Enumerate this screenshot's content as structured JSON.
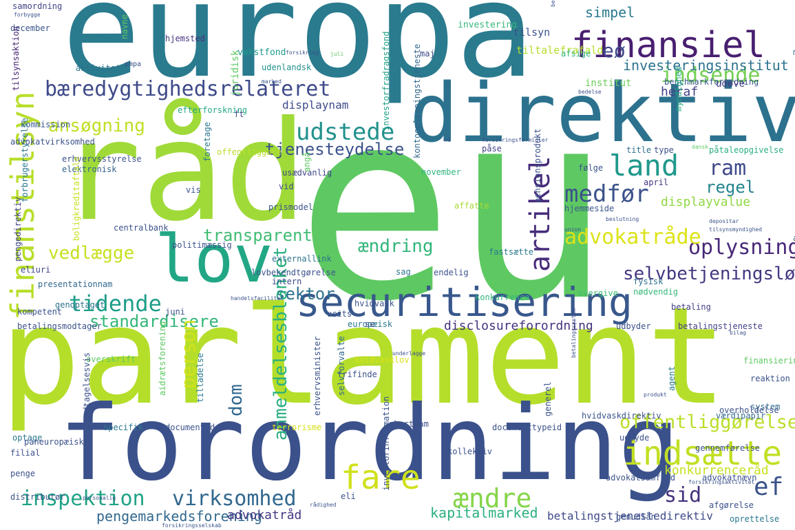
{
  "words": [
    {
      "text": "europa",
      "color": "#2a7b8e",
      "rot": 0
    },
    {
      "text": "eu",
      "color": "#5ec962",
      "rot": 0
    },
    {
      "text": "parlament",
      "color": "#b5de2b",
      "rot": 0
    },
    {
      "text": "forordning",
      "color": "#3b518b",
      "rot": 0
    },
    {
      "text": "direktiv",
      "color": "#2c728e",
      "rot": 0
    },
    {
      "text": "råd",
      "color": "#a0da39",
      "rot": 0
    },
    {
      "text": "lov",
      "color": "#22a785",
      "rot": 0
    },
    {
      "text": "finansiel",
      "color": "#481f70",
      "rot": 0
    },
    {
      "text": "securitisering",
      "color": "#38588c",
      "rot": 0
    },
    {
      "text": "bæredygtighedsrelateret",
      "color": "#3e4a89",
      "rot": 0
    },
    {
      "text": "finanstilsyn",
      "color": "#b8de29",
      "rot": 90
    },
    {
      "text": "fare",
      "color": "#d0e11c",
      "rot": 0
    },
    {
      "text": "indsætte",
      "color": "#c2df23",
      "rot": 0
    },
    {
      "text": "land",
      "color": "#1f988b",
      "rot": 0
    },
    {
      "text": "medfør",
      "color": "#3b528b",
      "rot": 0
    },
    {
      "text": "artikel",
      "color": "#472d7b",
      "rot": 90
    },
    {
      "text": "udstede",
      "color": "#21918c",
      "rot": 0
    },
    {
      "text": "tidende",
      "color": "#1f9e89",
      "rot": 0
    },
    {
      "text": "oplysning",
      "color": "#482878",
      "rot": 0
    },
    {
      "text": "advokatråde",
      "color": "#dde318",
      "rot": 0
    },
    {
      "text": "indsende",
      "color": "#75d054",
      "rot": 0
    },
    {
      "text": "inspektion",
      "color": "#20a386",
      "rot": 0
    },
    {
      "text": "virksomhed",
      "color": "#31688e",
      "rot": 0
    },
    {
      "text": "ændre",
      "color": "#86d549",
      "rot": 0
    },
    {
      "text": "offentliggørelse",
      "color": "#bade28",
      "rot": 0
    },
    {
      "text": "ef",
      "color": "#3b528b",
      "rot": 0
    },
    {
      "text": "sid",
      "color": "#46327e",
      "rot": 0
    },
    {
      "text": "ram",
      "color": "#3e4989",
      "rot": 0
    },
    {
      "text": "regel",
      "color": "#25848e",
      "rot": 0
    },
    {
      "text": "eø",
      "color": "#3e4989",
      "rot": 0
    },
    {
      "text": "transparent",
      "color": "#3fbc73",
      "rot": 0
    },
    {
      "text": "selvbetjeningsløsning",
      "color": "#453781",
      "rot": 0
    },
    {
      "text": "sektor",
      "color": "#2d718e",
      "rot": 0
    },
    {
      "text": "ændring",
      "color": "#32b67a",
      "rot": 0
    },
    {
      "text": "vedlægge",
      "color": "#c8e020",
      "rot": 0
    },
    {
      "text": "ansøgning",
      "color": "#c0df25",
      "rot": 0
    },
    {
      "text": "standardisere",
      "color": "#34b679",
      "rot": 0
    },
    {
      "text": "person",
      "color": "#d2e21b",
      "rot": 90
    },
    {
      "text": "dom",
      "color": "#31688e",
      "rot": 90
    },
    {
      "text": "anmeldelsesblanket",
      "color": "#29af7f",
      "rot": 90
    },
    {
      "text": "tjenesteydelse",
      "color": "#3b528b",
      "rot": 0
    },
    {
      "text": "displaynam",
      "color": "#3e4a89",
      "rot": 0
    },
    {
      "text": "investeringsinstitut",
      "color": "#2c728e",
      "rot": 0
    },
    {
      "text": "simpel",
      "color": "#2a788e",
      "rot": 0
    },
    {
      "text": "heraf",
      "color": "#424086",
      "rot": 0
    },
    {
      "text": "displayvalue",
      "color": "#90d743",
      "rot": 0
    },
    {
      "text": "konkurrenceråd",
      "color": "#c8e020",
      "rot": 0
    },
    {
      "text": "kapitalmarked",
      "color": "#2ab07f",
      "rot": 0
    },
    {
      "text": "pengemarkedsforening",
      "color": "#31688e",
      "rot": 0
    },
    {
      "text": "advokatråd",
      "color": "#443983",
      "rot": 0
    },
    {
      "text": "disclosureforordning",
      "color": "#46327e",
      "rot": 0
    },
    {
      "text": "betalingstjenestedirektiv",
      "color": "#3e4989",
      "rot": 0
    },
    {
      "text": "samordning",
      "color": "#414487",
      "rot": 0
    },
    {
      "text": "december",
      "color": "#3b528b",
      "rot": 0
    },
    {
      "text": "aktivitet",
      "color": "#2c728e",
      "rot": 0
    },
    {
      "text": "hjemsted",
      "color": "#46327e",
      "rot": 0
    },
    {
      "text": "vækstfond",
      "color": "#1e9b8a",
      "rot": 0
    },
    {
      "text": "juridisk",
      "color": "#5ec962",
      "rot": 90
    },
    {
      "text": "investering",
      "color": "#35b779",
      "rot": 0
    },
    {
      "text": "tilsyn",
      "color": "#3b528b",
      "rot": 0
    },
    {
      "text": "tiltalefrafald",
      "color": "#b5de2b",
      "rot": 0
    },
    {
      "text": "afsige",
      "color": "#30b47a",
      "rot": 0
    },
    {
      "text": "maj",
      "color": "#3e4989",
      "rot": 0
    },
    {
      "text": "udenlandsk",
      "color": "#21918c",
      "rot": 0
    },
    {
      "text": "investorfradragsfond",
      "color": "#1fa188",
      "rot": 90
    },
    {
      "text": "benchmarkforordning",
      "color": "#39568c",
      "rot": 0
    },
    {
      "text": "institut",
      "color": "#6ccd5a",
      "rot": 0
    },
    {
      "text": "udøve",
      "color": "#433e85",
      "rot": 0
    },
    {
      "text": "medvirke",
      "color": "#2d708e",
      "rot": 0
    },
    {
      "text": "tilsynsaktion",
      "color": "#482575",
      "rot": 90
    },
    {
      "text": "kommission",
      "color": "#38588c",
      "rot": 0
    },
    {
      "text": "efterforskning",
      "color": "#22a884",
      "rot": 0
    },
    {
      "text": "ft",
      "color": "#3e4989",
      "rot": 0
    },
    {
      "text": "offentliggøre",
      "color": "#bade28",
      "rot": 0
    },
    {
      "text": "foretage",
      "color": "#2a788e",
      "rot": 90
    },
    {
      "text": "myndighed",
      "color": "#22a884",
      "rot": 90
    },
    {
      "text": "påse",
      "color": "#414487",
      "rot": 0
    },
    {
      "text": "title",
      "color": "#2e6f8e",
      "rot": 0
    },
    {
      "text": "type",
      "color": "#3b528b",
      "rot": 0
    },
    {
      "text": "påtaleopgivelse",
      "color": "#2ab07f",
      "rot": 0
    },
    {
      "text": "anvendelse",
      "color": "#2c728e",
      "rot": 0
    },
    {
      "text": "kontooplysningstjeneste",
      "color": "#31688e",
      "rot": 90
    },
    {
      "text": "november",
      "color": "#2fb47c",
      "rot": 0
    },
    {
      "text": "følge",
      "color": "#3b528b",
      "rot": 0
    },
    {
      "text": "april",
      "color": "#46327e",
      "rot": 0
    },
    {
      "text": "hjemmeside",
      "color": "#39568c",
      "rot": 0
    },
    {
      "text": "erhvervsstyrelse",
      "color": "#3b528b",
      "rot": 0
    },
    {
      "text": "elektronisk",
      "color": "#33638d",
      "rot": 0
    },
    {
      "text": "usædvanlig",
      "color": "#3f4788",
      "rot": 0
    },
    {
      "text": "vid",
      "color": "#3e4989",
      "rot": 0
    },
    {
      "text": "prismodel",
      "color": "#3b528b",
      "rot": 0
    },
    {
      "text": "affatte",
      "color": "#a8db34",
      "rot": 0
    },
    {
      "text": "fastsætte",
      "color": "#2a788e",
      "rot": 0
    },
    {
      "text": "pensionsprodukt",
      "color": "#3b528b",
      "rot": 90
    },
    {
      "text": "pengedirektiv",
      "color": "#414487",
      "rot": 90
    },
    {
      "text": "boligkreditaftale",
      "color": "#c8e020",
      "rot": 90
    },
    {
      "text": "forbrugerstyrelse",
      "color": "#2a788e",
      "rot": 90
    },
    {
      "text": "centralbank",
      "color": "#3b528b",
      "rot": 0
    },
    {
      "text": "politimæssig",
      "color": "#3b528b",
      "rot": 0
    },
    {
      "text": "fysisk",
      "color": "#2d708e",
      "rot": 0
    },
    {
      "text": "eliuri",
      "color": "#3e4989",
      "rot": 0
    },
    {
      "text": "presentationnam",
      "color": "#31688e",
      "rot": 0
    },
    {
      "text": "externallink",
      "color": "#2c728e",
      "rot": 0
    },
    {
      "text": "sag",
      "color": "#2c728e",
      "rot": 0
    },
    {
      "text": "endelig",
      "color": "#3b528b",
      "rot": 0
    },
    {
      "text": "intern",
      "color": "#3e4989",
      "rot": 0
    },
    {
      "text": "overgive",
      "color": "#3fbc73",
      "rot": 0
    },
    {
      "text": "nødvendig",
      "color": "#35b779",
      "rot": 0
    },
    {
      "text": "konkurrence",
      "color": "#2fb47c",
      "rot": 0
    },
    {
      "text": "genoptaget",
      "color": "#2c728e",
      "rot": 0
    },
    {
      "text": "kompetent",
      "color": "#3b528b",
      "rot": 0
    },
    {
      "text": "juni",
      "color": "#3b528b",
      "rot": 0
    },
    {
      "text": "hvidvask",
      "color": "#3b528b",
      "rot": 0
    },
    {
      "text": "ucits",
      "color": "#3b528b",
      "rot": 0
    },
    {
      "text": "europæisk",
      "color": "#2a788e",
      "rot": 0
    },
    {
      "text": "se",
      "color": "#3b528b",
      "rot": 0
    },
    {
      "text": "udbyder",
      "color": "#3b528b",
      "rot": 0
    },
    {
      "text": "betaling",
      "color": "#424086",
      "rot": 0
    },
    {
      "text": "betalingsmodtager",
      "color": "#3b528b",
      "rot": 0
    },
    {
      "text": "betalingstjeneste",
      "color": "#424086",
      "rot": 0
    },
    {
      "text": "overskrift",
      "color": "#5ec962",
      "rot": 0
    },
    {
      "text": "hvidvasklov",
      "color": "#d8e219",
      "rot": 0
    },
    {
      "text": "frifinde",
      "color": "#3b528b",
      "rot": 0
    },
    {
      "text": "finansiering",
      "color": "#5ec962",
      "rot": 0
    },
    {
      "text": "reaktion",
      "color": "#3b528b",
      "rot": 0
    },
    {
      "text": "system",
      "color": "#31688e",
      "rot": 0
    },
    {
      "text": "agent",
      "color": "#2a788e",
      "rot": 90
    },
    {
      "text": "overholdelse",
      "color": "#3b528b",
      "rot": 0
    },
    {
      "text": "optage",
      "color": "#2a788e",
      "rot": 0
    },
    {
      "text": "undtagelsesvis",
      "color": "#3b528b",
      "rot": 90
    },
    {
      "text": "aidrætsforening",
      "color": "#5ec962",
      "rot": 90
    },
    {
      "text": "tilladelse",
      "color": "#2a788e",
      "rot": 90
    },
    {
      "text": "selvforvalte",
      "color": "#31688e",
      "rot": 90
    },
    {
      "text": "generel",
      "color": "#3b528b",
      "rot": 90
    },
    {
      "text": "erhvervsminister",
      "color": "#3b528b",
      "rot": 90
    },
    {
      "text": "terrorisme",
      "color": "#d8e219",
      "rot": 0
    },
    {
      "text": "shortnam",
      "color": "#3b528b",
      "rot": 0
    },
    {
      "text": "documenttypeid",
      "color": "#3b528b",
      "rot": 0
    },
    {
      "text": "hvidvaskdirektiv",
      "color": "#3b528b",
      "rot": 0
    },
    {
      "text": "udbyde",
      "color": "#3b528b",
      "rot": 0
    },
    {
      "text": "gennemførelse",
      "color": "#3b528b",
      "rot": 0
    },
    {
      "text": "værdipapir",
      "color": "#31688e",
      "rot": 0
    },
    {
      "text": "specifik",
      "color": "#2a788e",
      "rot": 0
    },
    {
      "text": "documentid",
      "color": "#3b528b",
      "rot": 0
    },
    {
      "text": "paneuropæisk",
      "color": "#3b528b",
      "rot": 0
    },
    {
      "text": "filial",
      "color": "#3b528b",
      "rot": 0
    },
    {
      "text": "penge",
      "color": "#3b528b",
      "rot": 0
    },
    {
      "text": "kollektiv",
      "color": "#3b528b",
      "rot": 0
    },
    {
      "text": "eli",
      "color": "#3b528b",
      "rot": 0
    },
    {
      "text": "investorinformation",
      "color": "#3b528b",
      "rot": 90
    },
    {
      "text": "advokatsamfund",
      "color": "#3b528b",
      "rot": 0
    },
    {
      "text": "advokatnævn",
      "color": "#3b528b",
      "rot": 0
    },
    {
      "text": "distributør",
      "color": "#3b528b",
      "rot": 0
    },
    {
      "text": "afgørelse",
      "color": "#3b528b",
      "rot": 0
    },
    {
      "text": "oprettelse",
      "color": "#2a788e",
      "rot": 0
    },
    {
      "text": "genudlån",
      "color": "#3b528b",
      "rot": 0
    },
    {
      "text": "lovbekendtgørelse",
      "color": "#3b528b",
      "rot": 0
    },
    {
      "text": "vis",
      "color": "#3b528b",
      "rot": 0
    },
    {
      "text": "angå",
      "color": "#5ec962",
      "rot": 90
    },
    {
      "text": "navne",
      "color": "#5ec962",
      "rot": 90
    },
    {
      "text": "advokatvirksomhed",
      "color": "#3b528b",
      "rot": 0
    },
    {
      "text": "bestemmelse",
      "color": "#3b528b",
      "rot": 90
    },
    {
      "text": "marked",
      "color": "#3b528b",
      "rot": 0
    },
    {
      "text": "juli",
      "color": "#5ec962",
      "rot": 0
    },
    {
      "text": "forbygge",
      "color": "#3b528b",
      "rot": 0
    },
    {
      "text": "forsikring",
      "color": "#3b528b",
      "rot": 0
    },
    {
      "text": "bedelse",
      "color": "#3b528b",
      "rot": 0
    },
    {
      "text": "forsikringsformidler",
      "color": "#3b528b",
      "rot": 0
    },
    {
      "text": "nå",
      "color": "#3b528b",
      "rot": 0
    },
    {
      "text": "dansk",
      "color": "#5ec962",
      "rot": 0
    },
    {
      "text": "beslutning",
      "color": "#3b528b",
      "rot": 0
    },
    {
      "text": "union",
      "color": "#3b528b",
      "rot": 0
    },
    {
      "text": "depositar",
      "color": "#3b528b",
      "rot": 0
    },
    {
      "text": "tilsynsmyndighed",
      "color": "#3b528b",
      "rot": 0
    },
    {
      "text": "handelsfacilitet",
      "color": "#3b528b",
      "rot": 0
    },
    {
      "text": "personalig",
      "color": "#3b528b",
      "rot": 0
    },
    {
      "text": "rådighed",
      "color": "#3b528b",
      "rot": 0
    },
    {
      "text": "forsikringsselskab",
      "color": "#3b528b",
      "rot": 0
    },
    {
      "text": "forsikringsaktivitet",
      "color": "#3b528b",
      "rot": 0
    },
    {
      "text": "underlagge",
      "color": "#3b528b",
      "rot": 0
    },
    {
      "text": "bilag",
      "color": "#3b528b",
      "rot": 0
    },
    {
      "text": "produkt",
      "color": "#3b528b",
      "rot": 0
    },
    {
      "text": "betalingssystem",
      "color": "#3b528b",
      "rot": 90
    },
    {
      "text": "pmpa",
      "color": "#3b528b",
      "rot": 0
    }
  ]
}
